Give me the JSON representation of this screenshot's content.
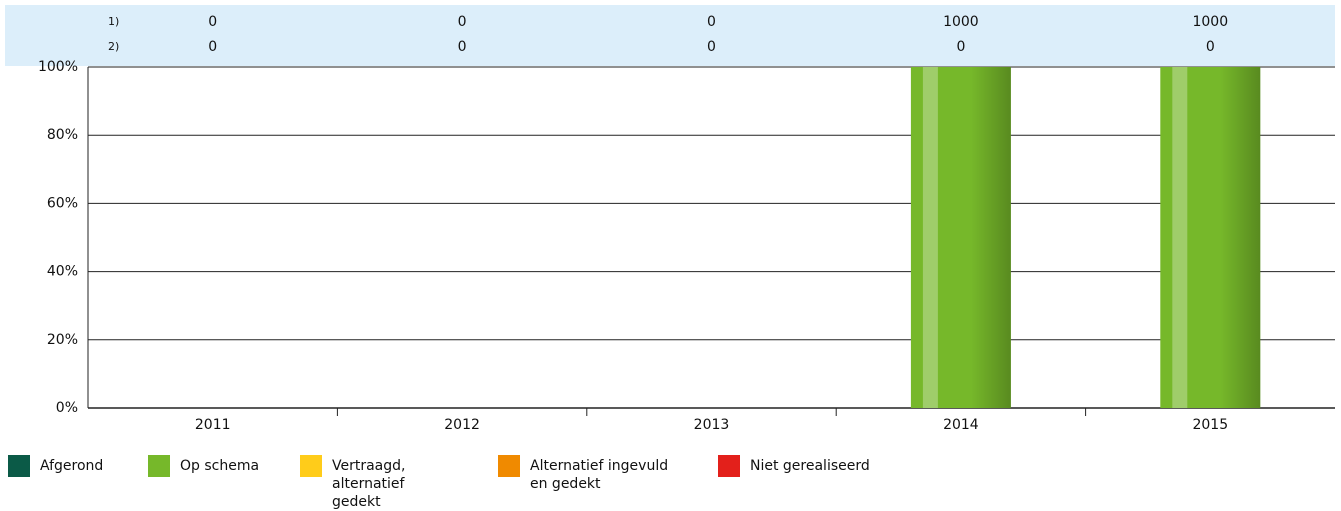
{
  "chart_data": {
    "type": "stacked_bar",
    "categories": [
      "2011",
      "2012",
      "2013",
      "2014",
      "2015"
    ],
    "table_rows": [
      {
        "label": "1)",
        "values": [
          0,
          0,
          0,
          1000,
          1000
        ]
      },
      {
        "label": "2)",
        "values": [
          0,
          0,
          0,
          0,
          0
        ]
      }
    ],
    "series": [
      {
        "name": "Afgerond",
        "color": "#0b5a47",
        "values": [
          0,
          0,
          0,
          0,
          0
        ]
      },
      {
        "name": "Op schema",
        "color": "#76b82a",
        "values": [
          0,
          0,
          0,
          100,
          100
        ]
      },
      {
        "name": "Vertraagd, alternatief gedekt",
        "color": "#ffcc1a",
        "values": [
          0,
          0,
          0,
          0,
          0
        ]
      },
      {
        "name": "Alternatief ingevuld en gedekt",
        "color": "#f08a00",
        "values": [
          0,
          0,
          0,
          0,
          0
        ]
      },
      {
        "name": "Niet gerealiseerd",
        "color": "#e3201b",
        "values": [
          0,
          0,
          0,
          0,
          0
        ]
      }
    ],
    "ylim": [
      0,
      100
    ],
    "yticks": [
      {
        "value": 0,
        "label": "0%"
      },
      {
        "value": 20,
        "label": "20%"
      },
      {
        "value": 40,
        "label": "40%"
      },
      {
        "value": 60,
        "label": "60%"
      },
      {
        "value": 80,
        "label": "80%"
      },
      {
        "value": 100,
        "label": "100%"
      }
    ],
    "grid": true
  }
}
